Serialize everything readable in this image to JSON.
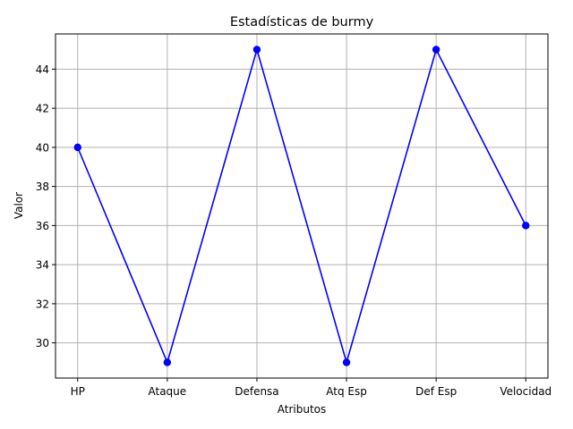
{
  "chart_data": {
    "type": "line",
    "title": "Estadísticas de burmy",
    "xlabel": "Atributos",
    "ylabel": "Valor",
    "categories": [
      "HP",
      "Ataque",
      "Defensa",
      "Atq Esp",
      "Def Esp",
      "Velocidad"
    ],
    "series": [
      {
        "values": [
          40,
          29,
          45,
          29,
          45,
          36
        ],
        "color": "#0000ff",
        "marker": "circle"
      }
    ],
    "ylim": [
      28.2,
      45.8
    ],
    "yticks": [
      30,
      32,
      34,
      36,
      38,
      40,
      42,
      44
    ],
    "grid": true,
    "colors": {
      "grid": "#b0b0b0",
      "axis": "#000000",
      "line": "#0000ff"
    }
  }
}
